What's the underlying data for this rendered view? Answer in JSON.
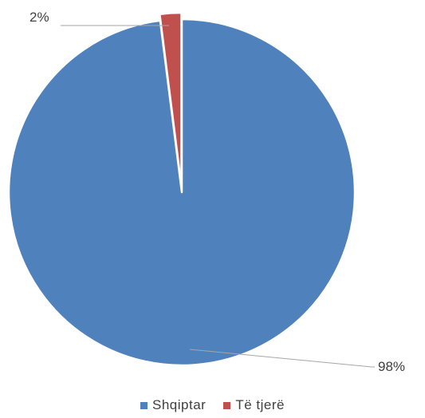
{
  "chart_data": {
    "type": "pie",
    "categories": [
      "Shqiptar",
      "Të tjerë"
    ],
    "values": [
      98,
      2
    ],
    "value_labels": [
      "98%",
      "2%"
    ],
    "colors": [
      "#4F81BD",
      "#C0504D"
    ],
    "exploded": [
      "",
      "Të tjerë"
    ],
    "start_angle_deg": 0,
    "direction": "clockwise",
    "legend_position": "bottom",
    "title": ""
  }
}
